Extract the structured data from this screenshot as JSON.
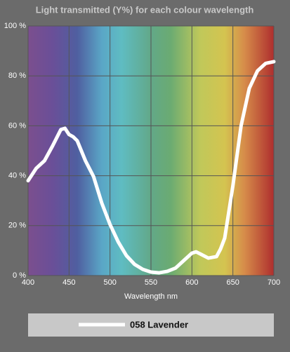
{
  "chart_data": {
    "type": "line",
    "title": "Light transmitted (Y%) for each colour wavelength",
    "x_label": "Wavelength nm",
    "x": [
      400,
      410,
      420,
      430,
      440,
      445,
      450,
      455,
      460,
      470,
      480,
      490,
      500,
      510,
      520,
      530,
      540,
      550,
      560,
      570,
      580,
      590,
      600,
      605,
      610,
      620,
      630,
      635,
      640,
      650,
      660,
      670,
      680,
      690,
      700
    ],
    "series": [
      {
        "name": "058 Lavender",
        "color": "#ffffff",
        "values": [
          38,
          43,
          46,
          52,
          58.5,
          59,
          56.5,
          55.6,
          54,
          46,
          39.6,
          29,
          20.5,
          13.5,
          8,
          4.5,
          2.5,
          1.4,
          1.1,
          1.7,
          3,
          6,
          9,
          9.5,
          8.7,
          7,
          7.6,
          10.7,
          15,
          36,
          60,
          75,
          82,
          85,
          85.7
        ]
      }
    ],
    "xlim": [
      400,
      700
    ],
    "xticks": [
      400,
      450,
      500,
      550,
      600,
      650,
      700
    ],
    "ylim": [
      0,
      100
    ],
    "yticks": [
      {
        "value": 0,
        "label": "0 %"
      },
      {
        "value": 20,
        "label": "20 %"
      },
      {
        "value": 40,
        "label": "40 %"
      },
      {
        "value": 60,
        "label": "60 %"
      },
      {
        "value": 80,
        "label": "80 %"
      },
      {
        "value": 100,
        "label": "100 %"
      }
    ],
    "grid": true
  }
}
